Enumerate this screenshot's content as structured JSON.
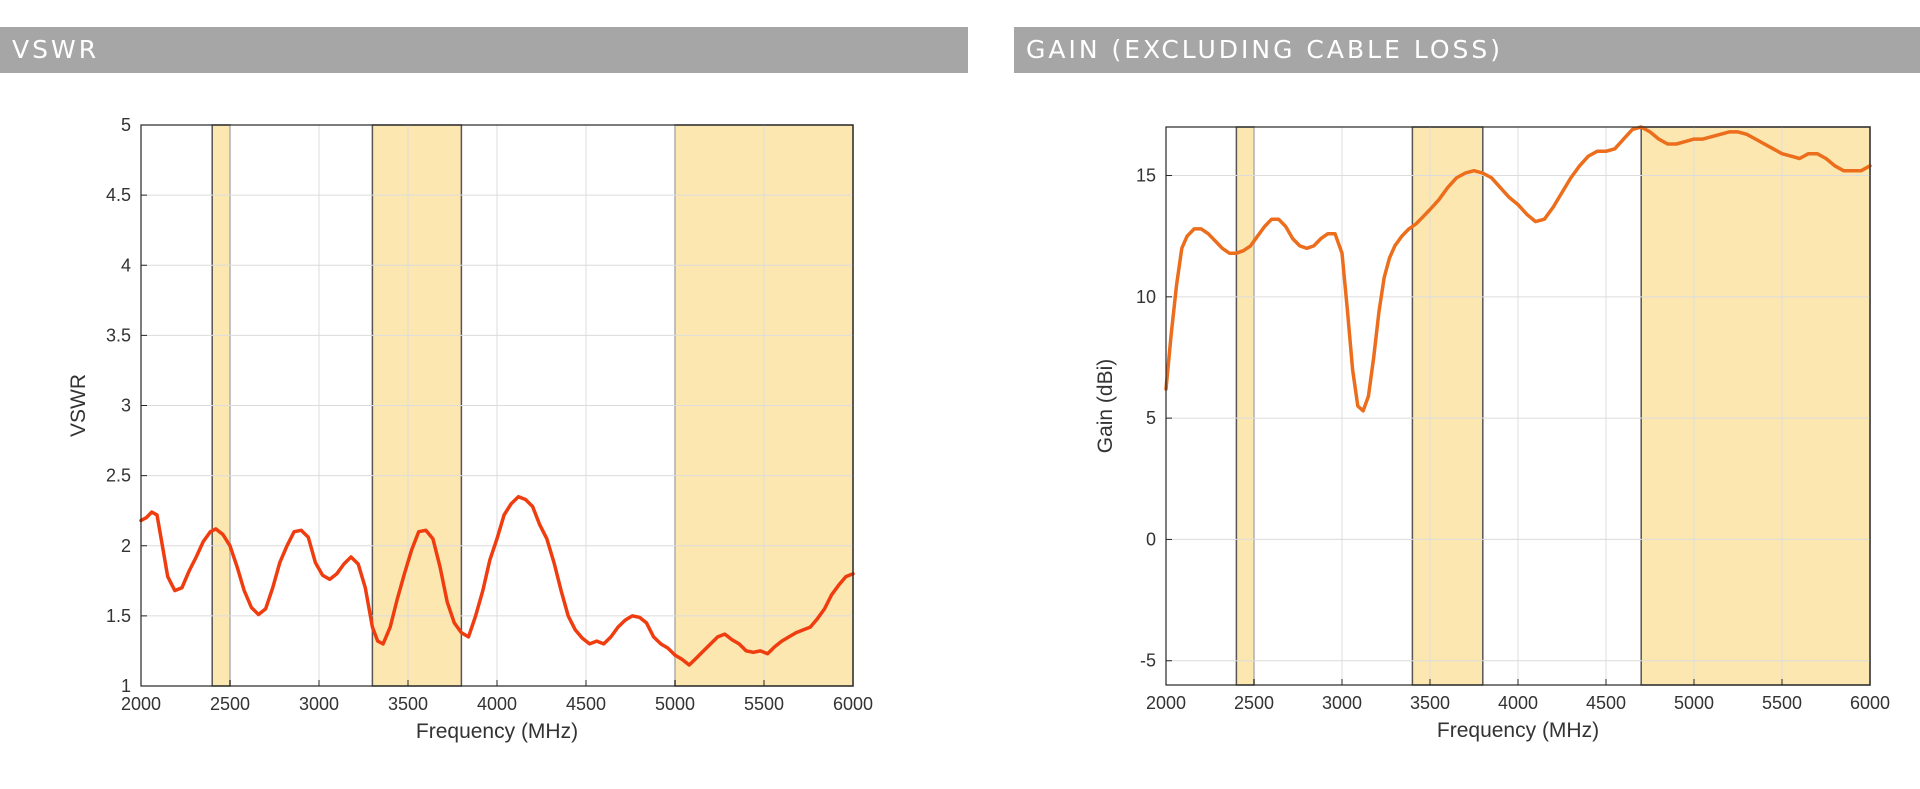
{
  "headers": {
    "left": "VSWR",
    "right": "GAIN (EXCLUDING CABLE LOSS)"
  },
  "colors": {
    "band_fill": "#fde7b1",
    "vswr_line": "#ef3d10",
    "gain_line": "#ec6e1c",
    "grid": "#dcdcdc",
    "header_bg": "#a6a6a6"
  },
  "chart_data": [
    {
      "type": "line",
      "xlabel": "Frequency (MHz)",
      "ylabel": "VSWR",
      "xlim": [
        2000,
        6000
      ],
      "ylim": [
        1,
        5
      ],
      "xticks": [
        2000,
        2500,
        3000,
        3500,
        4000,
        4500,
        5000,
        5500,
        6000
      ],
      "yticks": [
        1,
        1.5,
        2,
        2.5,
        3,
        3.5,
        4,
        4.5,
        5
      ],
      "ytick_labels": [
        "1",
        "1.5",
        "2",
        "2.5",
        "3",
        "3.5",
        "4",
        "4.5",
        "5"
      ],
      "grid": true,
      "bands": [
        [
          2400,
          2500
        ],
        [
          3300,
          3800
        ],
        [
          5000,
          6000
        ]
      ],
      "series": [
        {
          "x": [
            2000,
            2030,
            2060,
            2090,
            2120,
            2150,
            2190,
            2230,
            2270,
            2310,
            2350,
            2390,
            2420,
            2460,
            2500,
            2540,
            2580,
            2620,
            2660,
            2700,
            2740,
            2780,
            2820,
            2860,
            2900,
            2940,
            2980,
            3020,
            3060,
            3100,
            3140,
            3180,
            3220,
            3260,
            3300,
            3330,
            3360,
            3400,
            3440,
            3480,
            3520,
            3560,
            3600,
            3640,
            3680,
            3720,
            3760,
            3800,
            3840,
            3880,
            3920,
            3960,
            4000,
            4040,
            4080,
            4120,
            4160,
            4200,
            4240,
            4280,
            4320,
            4360,
            4400,
            4440,
            4480,
            4520,
            4560,
            4600,
            4640,
            4680,
            4720,
            4760,
            4800,
            4840,
            4880,
            4920,
            4960,
            5000,
            5040,
            5080,
            5120,
            5160,
            5200,
            5240,
            5280,
            5320,
            5360,
            5400,
            5440,
            5480,
            5520,
            5560,
            5600,
            5640,
            5680,
            5720,
            5760,
            5800,
            5840,
            5880,
            5920,
            5960,
            6000
          ],
          "y": [
            2.18,
            2.2,
            2.24,
            2.22,
            2.0,
            1.78,
            1.68,
            1.7,
            1.82,
            1.92,
            2.03,
            2.1,
            2.12,
            2.08,
            2.0,
            1.85,
            1.68,
            1.56,
            1.51,
            1.55,
            1.7,
            1.88,
            2.0,
            2.1,
            2.11,
            2.06,
            1.88,
            1.79,
            1.76,
            1.8,
            1.87,
            1.92,
            1.87,
            1.7,
            1.42,
            1.32,
            1.3,
            1.42,
            1.62,
            1.8,
            1.97,
            2.1,
            2.11,
            2.05,
            1.85,
            1.6,
            1.45,
            1.38,
            1.35,
            1.5,
            1.68,
            1.9,
            2.05,
            2.22,
            2.3,
            2.35,
            2.33,
            2.28,
            2.15,
            2.05,
            1.88,
            1.68,
            1.5,
            1.4,
            1.34,
            1.3,
            1.32,
            1.3,
            1.35,
            1.42,
            1.47,
            1.5,
            1.49,
            1.45,
            1.35,
            1.3,
            1.27,
            1.22,
            1.19,
            1.15,
            1.2,
            1.25,
            1.3,
            1.35,
            1.37,
            1.33,
            1.3,
            1.25,
            1.24,
            1.25,
            1.23,
            1.28,
            1.32,
            1.35,
            1.38,
            1.4,
            1.42,
            1.48,
            1.55,
            1.65,
            1.72,
            1.78,
            1.8
          ]
        }
      ]
    },
    {
      "type": "line",
      "xlabel": "Frequency (MHz)",
      "ylabel": "Gain (dBi)",
      "xlim": [
        2000,
        6000
      ],
      "ylim": [
        -6,
        17
      ],
      "xticks": [
        2000,
        2500,
        3000,
        3500,
        4000,
        4500,
        5000,
        5500,
        6000
      ],
      "yticks": [
        -5,
        0,
        5,
        10,
        15
      ],
      "ytick_labels": [
        "-5",
        "0",
        "5",
        "10",
        "15"
      ],
      "grid": true,
      "bands": [
        [
          2400,
          2500
        ],
        [
          3400,
          3800
        ],
        [
          4700,
          6000
        ]
      ],
      "series": [
        {
          "x": [
            2000,
            2030,
            2060,
            2090,
            2120,
            2160,
            2200,
            2240,
            2280,
            2320,
            2360,
            2400,
            2440,
            2480,
            2520,
            2560,
            2600,
            2640,
            2680,
            2720,
            2760,
            2800,
            2840,
            2880,
            2920,
            2960,
            3000,
            3030,
            3060,
            3090,
            3120,
            3150,
            3180,
            3210,
            3240,
            3270,
            3300,
            3340,
            3380,
            3420,
            3460,
            3500,
            3550,
            3600,
            3650,
            3700,
            3750,
            3800,
            3850,
            3900,
            3950,
            4000,
            4050,
            4100,
            4150,
            4200,
            4250,
            4300,
            4350,
            4400,
            4450,
            4500,
            4550,
            4600,
            4650,
            4700,
            4750,
            4800,
            4850,
            4900,
            4950,
            5000,
            5050,
            5100,
            5150,
            5200,
            5250,
            5300,
            5350,
            5400,
            5450,
            5500,
            5550,
            5600,
            5650,
            5700,
            5750,
            5800,
            5850,
            5900,
            5950,
            6000
          ],
          "y": [
            6.2,
            8.5,
            10.5,
            12.0,
            12.5,
            12.8,
            12.8,
            12.6,
            12.3,
            12.0,
            11.8,
            11.8,
            11.9,
            12.1,
            12.5,
            12.9,
            13.2,
            13.2,
            12.9,
            12.4,
            12.1,
            12.0,
            12.1,
            12.4,
            12.6,
            12.6,
            11.8,
            9.5,
            7.0,
            5.5,
            5.3,
            5.9,
            7.5,
            9.4,
            10.8,
            11.6,
            12.1,
            12.5,
            12.8,
            13.0,
            13.3,
            13.6,
            14.0,
            14.5,
            14.9,
            15.1,
            15.2,
            15.1,
            14.9,
            14.5,
            14.1,
            13.8,
            13.4,
            13.1,
            13.2,
            13.7,
            14.3,
            14.9,
            15.4,
            15.8,
            16.0,
            16.0,
            16.1,
            16.5,
            16.9,
            17.0,
            16.8,
            16.5,
            16.3,
            16.3,
            16.4,
            16.5,
            16.5,
            16.6,
            16.7,
            16.8,
            16.8,
            16.7,
            16.5,
            16.3,
            16.1,
            15.9,
            15.8,
            15.7,
            15.9,
            15.9,
            15.7,
            15.4,
            15.2,
            15.2,
            15.2,
            15.4
          ]
        }
      ]
    }
  ]
}
